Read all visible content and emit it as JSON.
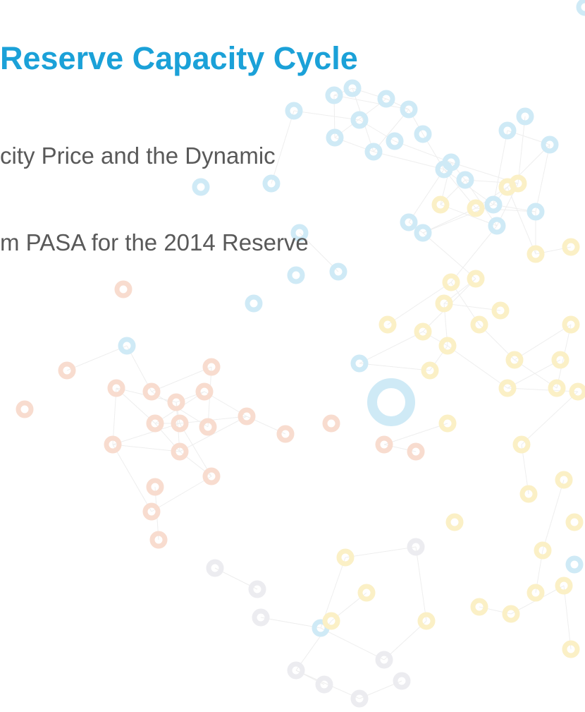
{
  "slide": {
    "title": "Reserve Capacity Cycle",
    "bullets": [
      "city Price and the Dynamic",
      "m PASA for the 2014 Reserve"
    ]
  }
}
